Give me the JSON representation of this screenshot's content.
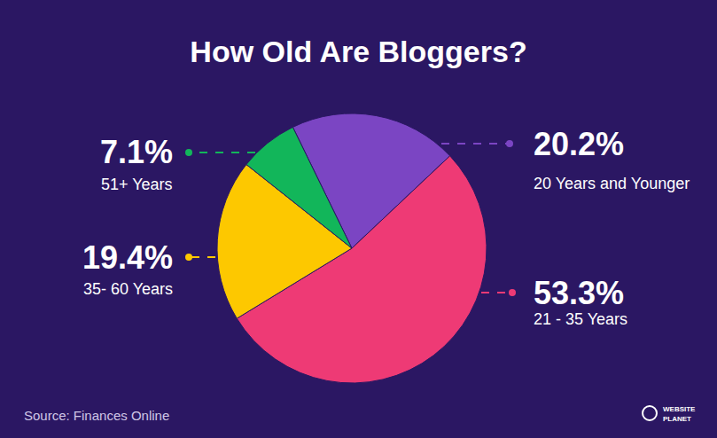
{
  "chart_data": {
    "type": "pie",
    "title": "How Old Are Bloggers?",
    "categories": [
      "20 Years and Younger",
      "21 - 35 Years",
      "35- 60 Years",
      "51+ Years"
    ],
    "values": [
      20.2,
      53.3,
      19.4,
      7.1
    ],
    "value_labels": [
      "20.2%",
      "53.3%",
      "19.4%",
      "7.1%"
    ],
    "colors": [
      "#7b45c3",
      "#ee3a75",
      "#fdc800",
      "#12b65a"
    ],
    "data_labels": true,
    "annotations": [
      "Source: Finances Online",
      "WEBSITE",
      "PLANET"
    ]
  }
}
